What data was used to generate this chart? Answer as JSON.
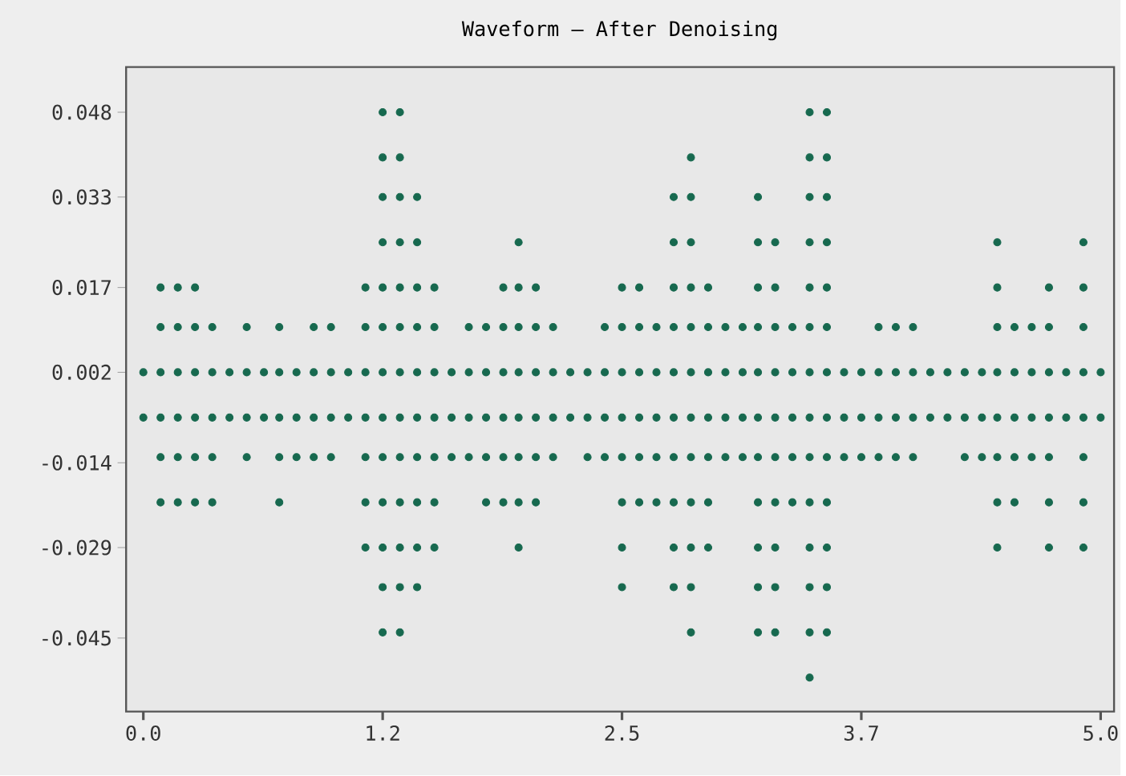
{
  "chart_data": {
    "type": "scatter",
    "title": "Waveform – After Denoising",
    "color": "#17694f",
    "marker": "circle",
    "xlim": [
      -0.09,
      5.07
    ],
    "ylim": [
      -0.058,
      0.056
    ],
    "xticks": [
      {
        "value": 0,
        "label": "0.0"
      },
      {
        "value": 1.25,
        "label": "1.2"
      },
      2.5,
      {
        "value": 3.75,
        "label": "3.7"
      },
      {
        "value": 5,
        "label": "5.0"
      }
    ],
    "yticks": [
      0.048,
      0.033,
      0.017,
      0.002,
      -0.014,
      -0.029,
      -0.045
    ],
    "series": [
      {
        "x": [
          1.25,
          1.34,
          3.48,
          3.57
        ],
        "values": [
          0.048,
          0.048,
          0.048,
          0.048
        ]
      },
      {
        "x": [
          1.25,
          1.34,
          2.86,
          3.48,
          3.57
        ],
        "values": [
          0.04,
          0.04,
          0.04,
          0.04,
          0.04
        ]
      },
      {
        "x": [
          1.25,
          1.34,
          1.43,
          2.77,
          2.86,
          3.21,
          3.48,
          3.57
        ],
        "values": [
          0.033,
          0.033,
          0.033,
          0.033,
          0.033,
          0.033,
          0.033,
          0.033
        ]
      },
      {
        "x": [
          1.25,
          1.34,
          1.43,
          1.96,
          2.77,
          2.86,
          3.21,
          3.3,
          3.48,
          3.57,
          4.46,
          4.91
        ],
        "values": [
          0.025,
          0.025,
          0.025,
          0.025,
          0.025,
          0.025,
          0.025,
          0.025,
          0.025,
          0.025,
          0.025,
          0.025
        ]
      },
      {
        "x": [
          0.09,
          0.18,
          0.27,
          1.16,
          1.25,
          1.34,
          1.43,
          1.52,
          1.88,
          1.96,
          2.05,
          2.5,
          2.59,
          2.77,
          2.86,
          2.95,
          3.21,
          3.3,
          3.48,
          3.57,
          4.46,
          4.73,
          4.91
        ],
        "values": [
          0.017,
          0.017,
          0.017,
          0.017,
          0.017,
          0.017,
          0.017,
          0.017,
          0.017,
          0.017,
          0.017,
          0.017,
          0.017,
          0.017,
          0.017,
          0.017,
          0.017,
          0.017,
          0.017,
          0.017,
          0.017,
          0.017,
          0.017
        ]
      },
      {
        "x": [
          0.09,
          0.18,
          0.27,
          0.36,
          0.54,
          0.71,
          0.89,
          0.98,
          1.16,
          1.25,
          1.34,
          1.43,
          1.52,
          1.7,
          1.79,
          1.88,
          1.96,
          2.05,
          2.14,
          2.41,
          2.5,
          2.59,
          2.68,
          2.77,
          2.86,
          2.95,
          3.04,
          3.13,
          3.21,
          3.3,
          3.39,
          3.48,
          3.57,
          3.84,
          3.93,
          4.02,
          4.46,
          4.55,
          4.64,
          4.73,
          4.91
        ],
        "values": [
          0.01,
          0.01,
          0.01,
          0.01,
          0.01,
          0.01,
          0.01,
          0.01,
          0.01,
          0.01,
          0.01,
          0.01,
          0.01,
          0.01,
          0.01,
          0.01,
          0.01,
          0.01,
          0.01,
          0.01,
          0.01,
          0.01,
          0.01,
          0.01,
          0.01,
          0.01,
          0.01,
          0.01,
          0.01,
          0.01,
          0.01,
          0.01,
          0.01,
          0.01,
          0.01,
          0.01,
          0.01,
          0.01,
          0.01,
          0.01,
          0.01
        ]
      },
      {
        "x": [
          0,
          0.09,
          0.18,
          0.27,
          0.36,
          0.45,
          0.54,
          0.63,
          0.71,
          0.8,
          0.89,
          0.98,
          1.07,
          1.16,
          1.25,
          1.34,
          1.43,
          1.52,
          1.61,
          1.7,
          1.79,
          1.88,
          1.96,
          2.05,
          2.14,
          2.23,
          2.32,
          2.41,
          2.5,
          2.59,
          2.68,
          2.77,
          2.86,
          2.95,
          3.04,
          3.13,
          3.21,
          3.3,
          3.39,
          3.48,
          3.57,
          3.66,
          3.75,
          3.84,
          3.93,
          4.02,
          4.11,
          4.2,
          4.29,
          4.38,
          4.46,
          4.55,
          4.64,
          4.73,
          4.82,
          4.91,
          5.0
        ],
        "values": [
          0.002,
          0.002,
          0.002,
          0.002,
          0.002,
          0.002,
          0.002,
          0.002,
          0.002,
          0.002,
          0.002,
          0.002,
          0.002,
          0.002,
          0.002,
          0.002,
          0.002,
          0.002,
          0.002,
          0.002,
          0.002,
          0.002,
          0.002,
          0.002,
          0.002,
          0.002,
          0.002,
          0.002,
          0.002,
          0.002,
          0.002,
          0.002,
          0.002,
          0.002,
          0.002,
          0.002,
          0.002,
          0.002,
          0.002,
          0.002,
          0.002,
          0.002,
          0.002,
          0.002,
          0.002,
          0.002,
          0.002,
          0.002,
          0.002,
          0.002,
          0.002,
          0.002,
          0.002,
          0.002,
          0.002,
          0.002,
          0.002
        ]
      },
      {
        "x": [
          0,
          0.09,
          0.18,
          0.27,
          0.36,
          0.45,
          0.54,
          0.63,
          0.71,
          0.8,
          0.89,
          0.98,
          1.07,
          1.16,
          1.25,
          1.34,
          1.43,
          1.52,
          1.61,
          1.7,
          1.79,
          1.88,
          1.96,
          2.05,
          2.14,
          2.23,
          2.32,
          2.41,
          2.5,
          2.59,
          2.68,
          2.77,
          2.86,
          2.95,
          3.04,
          3.13,
          3.21,
          3.3,
          3.39,
          3.48,
          3.57,
          3.66,
          3.75,
          3.84,
          3.93,
          4.02,
          4.11,
          4.2,
          4.29,
          4.38,
          4.46,
          4.55,
          4.64,
          4.73,
          4.82,
          4.91,
          5.0
        ],
        "values": [
          -0.006,
          -0.006,
          -0.006,
          -0.006,
          -0.006,
          -0.006,
          -0.006,
          -0.006,
          -0.006,
          -0.006,
          -0.006,
          -0.006,
          -0.006,
          -0.006,
          -0.006,
          -0.006,
          -0.006,
          -0.006,
          -0.006,
          -0.006,
          -0.006,
          -0.006,
          -0.006,
          -0.006,
          -0.006,
          -0.006,
          -0.006,
          -0.006,
          -0.006,
          -0.006,
          -0.006,
          -0.006,
          -0.006,
          -0.006,
          -0.006,
          -0.006,
          -0.006,
          -0.006,
          -0.006,
          -0.006,
          -0.006,
          -0.006,
          -0.006,
          -0.006,
          -0.006,
          -0.006,
          -0.006,
          -0.006,
          -0.006,
          -0.006,
          -0.006,
          -0.006,
          -0.006,
          -0.006,
          -0.006,
          -0.006,
          -0.006
        ]
      },
      {
        "x": [
          0.09,
          0.18,
          0.27,
          0.36,
          0.54,
          0.71,
          0.8,
          0.89,
          0.98,
          1.16,
          1.25,
          1.34,
          1.43,
          1.52,
          1.61,
          1.7,
          1.79,
          1.88,
          1.96,
          2.05,
          2.14,
          2.32,
          2.41,
          2.5,
          2.59,
          2.68,
          2.77,
          2.86,
          2.95,
          3.04,
          3.13,
          3.21,
          3.3,
          3.39,
          3.48,
          3.57,
          3.66,
          3.75,
          3.84,
          3.93,
          4.02,
          4.29,
          4.38,
          4.46,
          4.55,
          4.64,
          4.73,
          4.91
        ],
        "values": [
          -0.013,
          -0.013,
          -0.013,
          -0.013,
          -0.013,
          -0.013,
          -0.013,
          -0.013,
          -0.013,
          -0.013,
          -0.013,
          -0.013,
          -0.013,
          -0.013,
          -0.013,
          -0.013,
          -0.013,
          -0.013,
          -0.013,
          -0.013,
          -0.013,
          -0.013,
          -0.013,
          -0.013,
          -0.013,
          -0.013,
          -0.013,
          -0.013,
          -0.013,
          -0.013,
          -0.013,
          -0.013,
          -0.013,
          -0.013,
          -0.013,
          -0.013,
          -0.013,
          -0.013,
          -0.013,
          -0.013,
          -0.013,
          -0.013,
          -0.013,
          -0.013,
          -0.013,
          -0.013,
          -0.013,
          -0.013
        ]
      },
      {
        "x": [
          0.09,
          0.18,
          0.27,
          0.36,
          0.71,
          1.16,
          1.25,
          1.34,
          1.43,
          1.52,
          1.79,
          1.88,
          1.96,
          2.05,
          2.5,
          2.59,
          2.68,
          2.77,
          2.86,
          2.95,
          3.21,
          3.3,
          3.39,
          3.48,
          3.57,
          4.46,
          4.55,
          4.73,
          4.91
        ],
        "values": [
          -0.021,
          -0.021,
          -0.021,
          -0.021,
          -0.021,
          -0.021,
          -0.021,
          -0.021,
          -0.021,
          -0.021,
          -0.021,
          -0.021,
          -0.021,
          -0.021,
          -0.021,
          -0.021,
          -0.021,
          -0.021,
          -0.021,
          -0.021,
          -0.021,
          -0.021,
          -0.021,
          -0.021,
          -0.021,
          -0.021,
          -0.021,
          -0.021,
          -0.021
        ]
      },
      {
        "x": [
          1.16,
          1.25,
          1.34,
          1.43,
          1.52,
          1.96,
          2.5,
          2.77,
          2.86,
          2.95,
          3.21,
          3.3,
          3.48,
          3.57,
          4.46,
          4.73,
          4.91
        ],
        "values": [
          -0.029,
          -0.029,
          -0.029,
          -0.029,
          -0.029,
          -0.029,
          -0.029,
          -0.029,
          -0.029,
          -0.029,
          -0.029,
          -0.029,
          -0.029,
          -0.029,
          -0.029,
          -0.029,
          -0.029
        ]
      },
      {
        "x": [
          1.25,
          1.34,
          1.43,
          2.5,
          2.77,
          2.86,
          3.21,
          3.3,
          3.48,
          3.57
        ],
        "values": [
          -0.036,
          -0.036,
          -0.036,
          -0.036,
          -0.036,
          -0.036,
          -0.036,
          -0.036,
          -0.036,
          -0.036
        ]
      },
      {
        "x": [
          1.25,
          1.34,
          2.86,
          3.21,
          3.3,
          3.48,
          3.57
        ],
        "values": [
          -0.044,
          -0.044,
          -0.044,
          -0.044,
          -0.044,
          -0.044,
          -0.044
        ]
      },
      {
        "x": [
          3.48
        ],
        "values": [
          -0.052
        ]
      }
    ]
  }
}
